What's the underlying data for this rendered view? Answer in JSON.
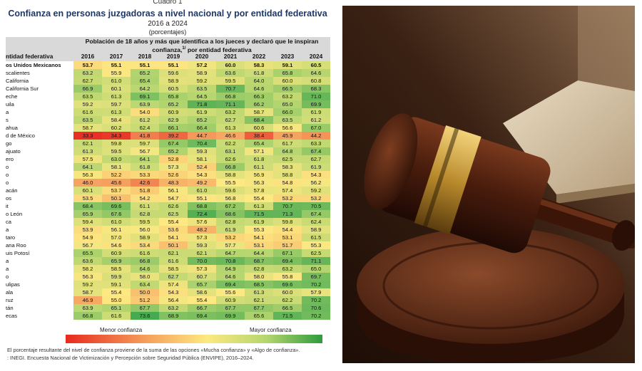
{
  "header": {
    "label": "Cuadro 1",
    "title": "Confianza en personas juzgadoras a nivel nacional y por entidad federativa",
    "period": "2016 a 2024",
    "units": "(porcentajes)"
  },
  "table": {
    "group_header": "Población de 18 años y más que identifica a los jueces y declaró que le inspiran confianza,",
    "group_header_note": "1/",
    "group_header_tail": " por entidad federativa",
    "columns": [
      "ntidad federativa",
      "2016",
      "2017",
      "2018",
      "2019",
      "2020",
      "2021",
      "2022",
      "2023",
      "2024"
    ],
    "rows": [
      [
        "os Unidos Mexicanos",
        "53.7",
        "55.1",
        "55.1",
        "55.1",
        "57.2",
        "60.0",
        "58.3",
        "59.1",
        "60.5"
      ],
      [
        "scalientes",
        "63.2",
        "55.9",
        "65.2",
        "59.6",
        "58.9",
        "63.6",
        "61.8",
        "65.8",
        "64.6"
      ],
      [
        "California",
        "62.7",
        "61.0",
        "65.4",
        "58.9",
        "59.2",
        "59.5",
        "64.0",
        "60.0",
        "60.8"
      ],
      [
        "California Sur",
        "66.9",
        "60.1",
        "64.2",
        "60.5",
        "63.5",
        "70.7",
        "64.6",
        "66.5",
        "68.3"
      ],
      [
        "eche",
        "63.5",
        "61.3",
        "69.1",
        "65.8",
        "64.5",
        "66.8",
        "66.3",
        "63.2",
        "71.0"
      ],
      [
        "uila",
        "59.2",
        "59.7",
        "63.9",
        "65.2",
        "71.8",
        "71.1",
        "66.2",
        "65.0",
        "69.9"
      ],
      [
        "a",
        "61.6",
        "61.3",
        "54.0",
        "60.9",
        "61.9",
        "63.2",
        "58.7",
        "66.0",
        "61.9"
      ],
      [
        "s",
        "63.5",
        "58.4",
        "61.2",
        "62.9",
        "65.2",
        "62.7",
        "68.4",
        "63.5",
        "61.2"
      ],
      [
        "ahua",
        "58.7",
        "60.2",
        "62.4",
        "66.1",
        "66.4",
        "61.3",
        "60.6",
        "56.6",
        "67.0"
      ],
      [
        "d de México",
        "33.3",
        "34.3",
        "41.8",
        "39.2",
        "44.7",
        "46.6",
        "38.4",
        "45.9",
        "44.2"
      ],
      [
        "go",
        "62.1",
        "59.8",
        "59.7",
        "67.4",
        "70.4",
        "62.2",
        "65.4",
        "61.7",
        "63.3"
      ],
      [
        "ajuato",
        "61.3",
        "59.5",
        "56.7",
        "65.2",
        "59.3",
        "63.1",
        "57.1",
        "64.8",
        "67.4"
      ],
      [
        "ero",
        "57.5",
        "63.0",
        "64.1",
        "52.8",
        "58.1",
        "62.6",
        "61.8",
        "62.5",
        "62.7"
      ],
      [
        "o",
        "64.1",
        "58.1",
        "61.8",
        "57.3",
        "52.4",
        "66.8",
        "61.1",
        "58.3",
        "61.9"
      ],
      [
        "o",
        "56.3",
        "52.2",
        "53.3",
        "52.6",
        "54.3",
        "58.8",
        "56.9",
        "58.8",
        "54.3"
      ],
      [
        "o",
        "46.0",
        "45.6",
        "42.6",
        "48.3",
        "49.2",
        "55.5",
        "56.3",
        "54.8",
        "56.2"
      ],
      [
        "acán",
        "60.1",
        "53.7",
        "51.8",
        "56.1",
        "61.0",
        "59.6",
        "57.8",
        "57.4",
        "59.2"
      ],
      [
        "os",
        "53.5",
        "50.1",
        "54.2",
        "54.7",
        "55.1",
        "56.8",
        "55.4",
        "53.2",
        "53.2"
      ],
      [
        "it",
        "68.4",
        "69.6",
        "61.1",
        "62.6",
        "68.8",
        "67.2",
        "61.3",
        "70.7",
        "70.5"
      ],
      [
        "o León",
        "65.9",
        "67.6",
        "62.8",
        "62.5",
        "72.4",
        "68.6",
        "71.5",
        "71.3",
        "67.4"
      ],
      [
        "ca",
        "59.4",
        "61.0",
        "59.5",
        "55.4",
        "57.6",
        "62.8",
        "61.9",
        "59.8",
        "62.4"
      ],
      [
        "a",
        "53.9",
        "56.1",
        "56.0",
        "53.6",
        "48.2",
        "61.9",
        "55.3",
        "54.4",
        "58.9"
      ],
      [
        "taro",
        "54.9",
        "57.0",
        "58.9",
        "54.1",
        "57.3",
        "53.2",
        "54.1",
        "53.1",
        "61.5"
      ],
      [
        "ana Roo",
        "56.7",
        "54.6",
        "53.4",
        "50.1",
        "59.3",
        "57.7",
        "53.1",
        "51.7",
        "55.3"
      ],
      [
        "uis Potosí",
        "65.5",
        "60.9",
        "61.6",
        "62.1",
        "62.1",
        "64.7",
        "64.4",
        "67.1",
        "62.5"
      ],
      [
        "a",
        "63.6",
        "65.9",
        "66.8",
        "61.6",
        "70.0",
        "70.8",
        "68.7",
        "69.4",
        "71.1"
      ],
      [
        "a",
        "58.2",
        "58.5",
        "64.6",
        "58.5",
        "57.3",
        "64.9",
        "62.8",
        "63.2",
        "65.0"
      ],
      [
        "o",
        "56.3",
        "59.9",
        "58.0",
        "62.7",
        "60.7",
        "64.6",
        "58.0",
        "55.8",
        "69.7"
      ],
      [
        "ulipas",
        "59.2",
        "59.1",
        "63.4",
        "57.4",
        "65.7",
        "69.4",
        "68.5",
        "69.6",
        "70.2"
      ],
      [
        "ala",
        "58.7",
        "55.4",
        "50.0",
        "54.3",
        "58.6",
        "55.6",
        "61.3",
        "60.0",
        "57.9"
      ],
      [
        "ruz",
        "46.9",
        "55.0",
        "51.2",
        "56.4",
        "55.4",
        "60.9",
        "62.1",
        "62.2",
        "70.2"
      ],
      [
        "tán",
        "63.9",
        "65.1",
        "67.7",
        "63.2",
        "66.7",
        "67.7",
        "67.7",
        "66.5",
        "70.6"
      ],
      [
        "ecas",
        "66.8",
        "61.6",
        "73.6",
        "68.9",
        "69.4",
        "69.9",
        "65.6",
        "71.5",
        "70.2"
      ]
    ]
  },
  "legend": {
    "low": "Menor confianza",
    "high": "Mayor confianza"
  },
  "notes": [
    "El porcentaje resultante del nivel de confianza proviene de la suma de las opciones «Mucha confianza» y «Algo de confianza».",
    ": INEGI. Encuesta Nacional de Victimización y Percepción sobre Seguridad Pública (ENVIPE), 2016–2024."
  ]
}
